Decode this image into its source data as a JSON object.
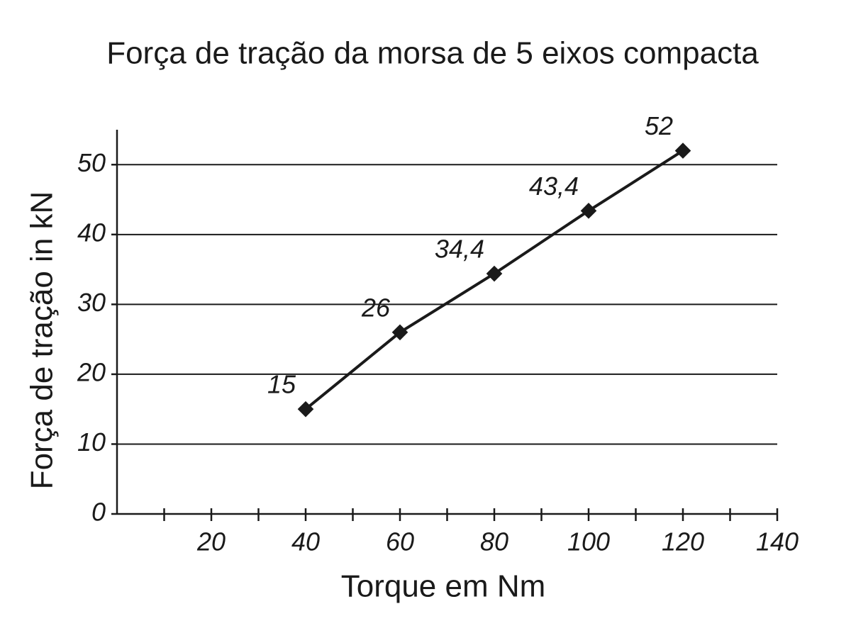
{
  "chart_data": {
    "type": "line",
    "title": "Força de tração da morsa de 5 eixos compacta",
    "x_label": "Torque em Nm",
    "y_label": "Força de tração in kN",
    "x": [
      40,
      60,
      80,
      100,
      120
    ],
    "values": [
      15,
      26,
      34.4,
      43.4,
      52
    ],
    "value_labels": [
      "15",
      "26",
      "34,4",
      "43,4",
      "52"
    ],
    "color": "#1a1a1a",
    "xlim": [
      0,
      140
    ],
    "xticks": [
      20,
      40,
      60,
      80,
      100,
      120,
      140
    ],
    "xminor_ticks": [
      10,
      30,
      50,
      70,
      90,
      110,
      130
    ],
    "ylim": [
      0,
      55
    ],
    "yticks": [
      0,
      10,
      20,
      30,
      40,
      50
    ],
    "grid": true
  }
}
